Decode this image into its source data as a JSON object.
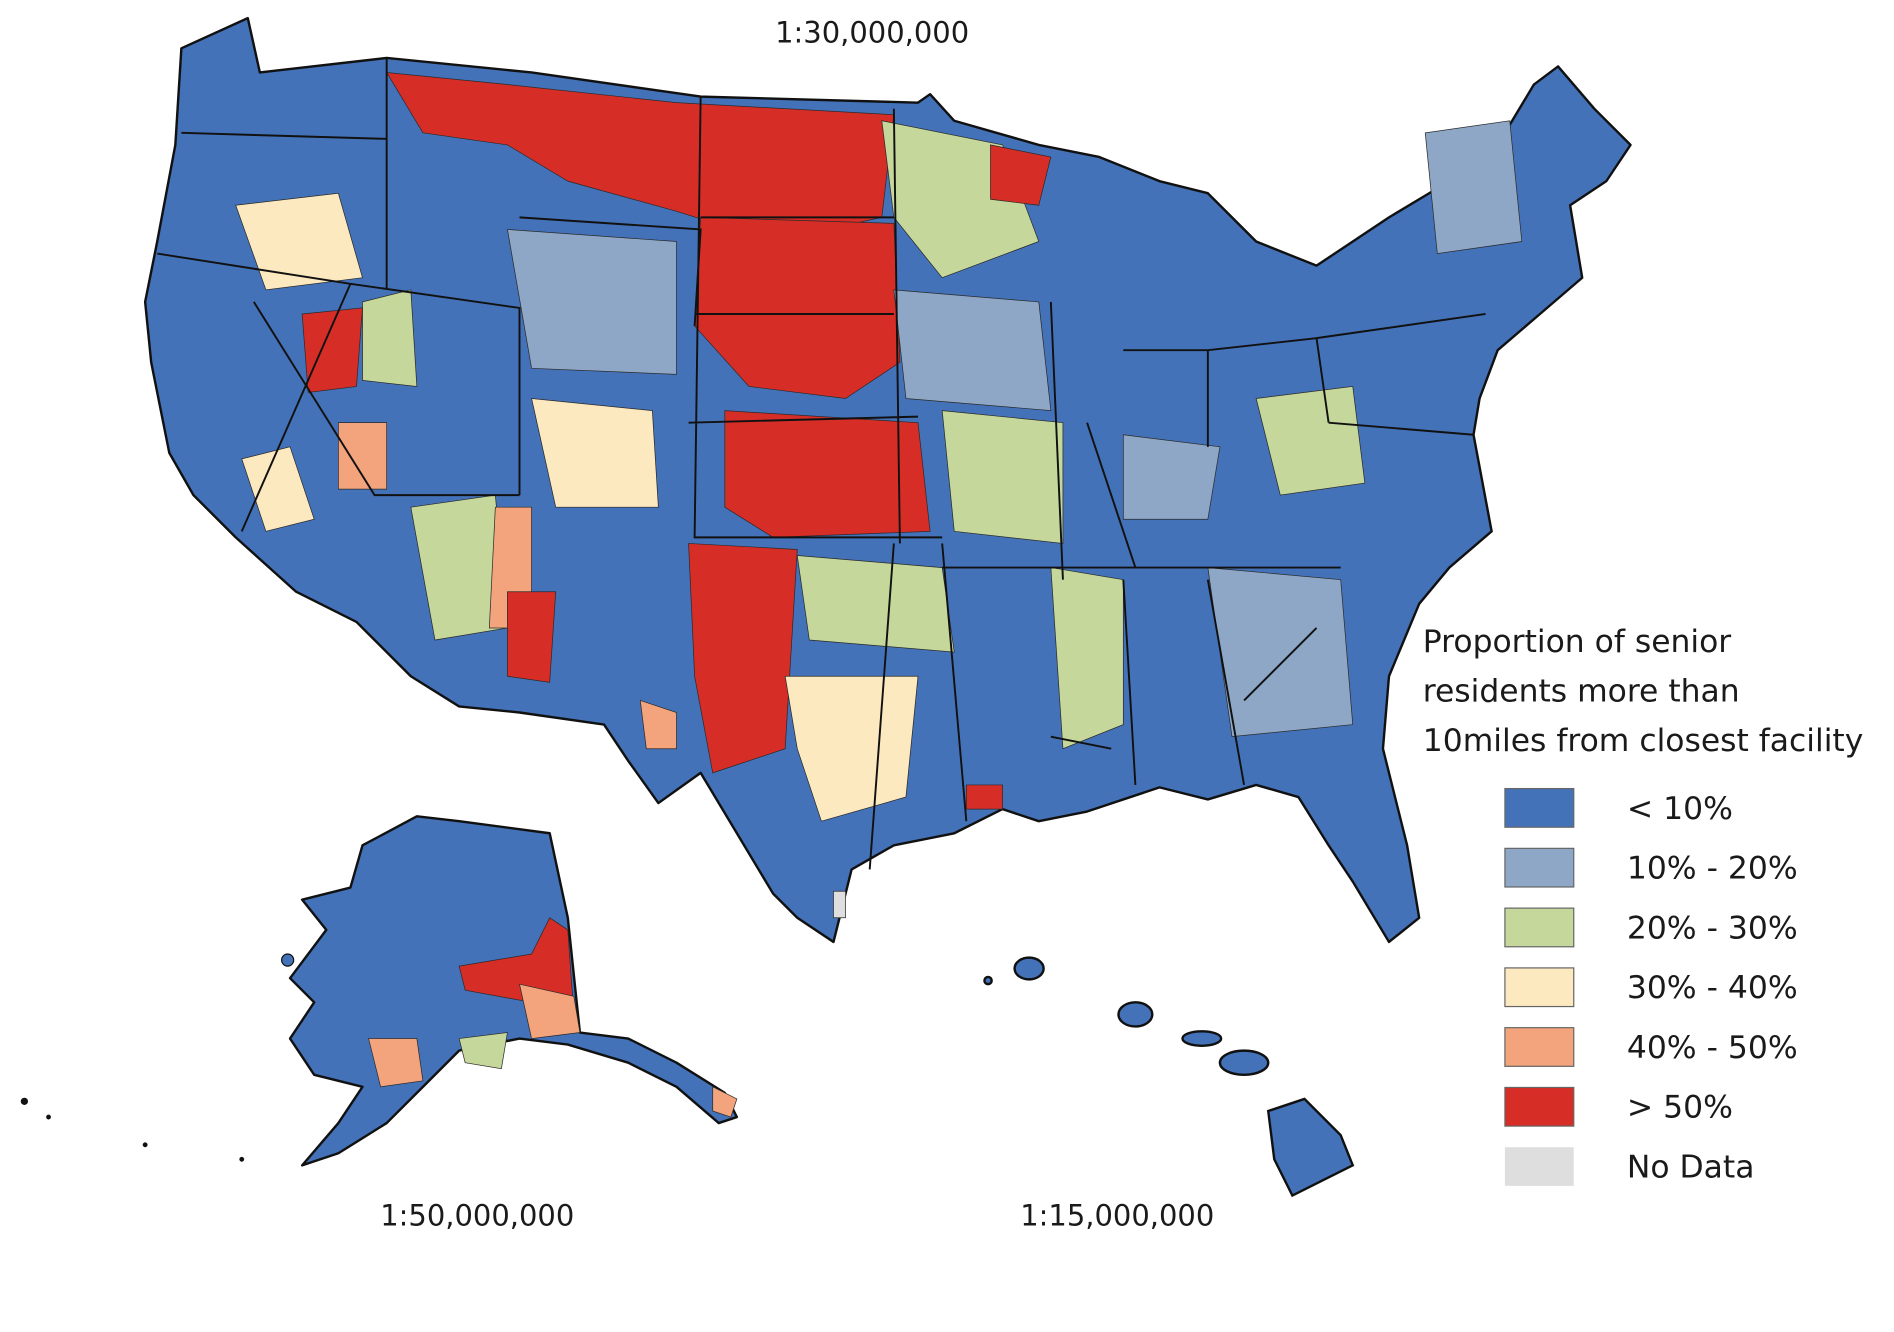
{
  "scales": {
    "conus": "1:30,000,000",
    "alaska": "1:50,000,000",
    "hawaii": "1:15,000,000"
  },
  "legend": {
    "title_lines": [
      "Proportion of senior",
      "residents more than",
      "10miles from closest facility"
    ],
    "items": [
      {
        "label": "< 10%",
        "color": "#4472b8"
      },
      {
        "label": "10% - 20%",
        "color": "#8ea7c6"
      },
      {
        "label": "20% - 30%",
        "color": "#c5d79a"
      },
      {
        "label": "30% - 40%",
        "color": "#fde9bf"
      },
      {
        "label": "40% - 50%",
        "color": "#f4a47c"
      },
      {
        "label": "> 50%",
        "color": "#d62d27"
      },
      {
        "label": "No Data",
        "color": "#dedede"
      }
    ]
  }
}
